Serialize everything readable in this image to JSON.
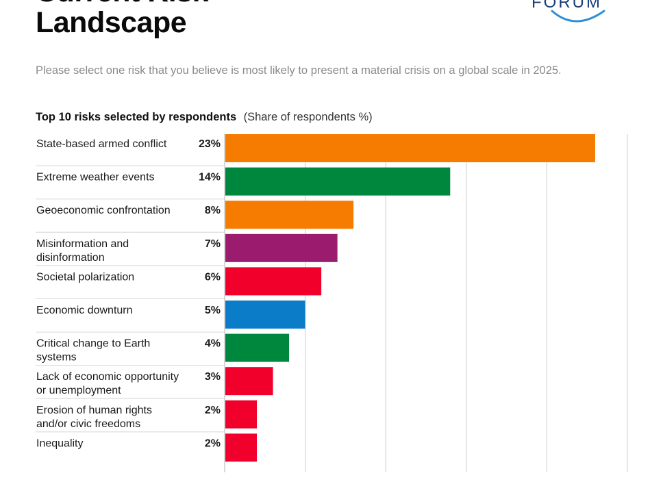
{
  "header": {
    "title_line1": "Current Risk",
    "title_line2": "Landscape",
    "logo_text": "FORUM",
    "subtitle": "Please select one risk that you believe is most likely to present a material crisis on a global scale in 2025."
  },
  "chart_data": {
    "type": "bar",
    "orientation": "horizontal",
    "title": "Top 10 risks selected by respondents",
    "unit_label": "(Share of respondents %)",
    "categories": [
      [
        "State-based armed conflict"
      ],
      [
        "Extreme weather events"
      ],
      [
        "Geoeconomic confrontation"
      ],
      [
        "Misinformation and",
        "disinformation"
      ],
      [
        "Societal polarization"
      ],
      [
        "Economic downturn"
      ],
      [
        "Critical change to Earth",
        "systems"
      ],
      [
        "Lack of economic opportunity",
        "or unemployment"
      ],
      [
        "Erosion of human rights",
        "and/or civic freedoms"
      ],
      [
        "Inequality"
      ]
    ],
    "values": [
      23,
      14,
      8,
      7,
      6,
      5,
      4,
      3,
      2,
      2
    ],
    "value_labels": [
      "23%",
      "14%",
      "8%",
      "7%",
      "6%",
      "5%",
      "4%",
      "3%",
      "2%",
      "2%"
    ],
    "colors": [
      "#f57c00",
      "#00873e",
      "#f57c00",
      "#9b1b6e",
      "#f0002a",
      "#0a7cc8",
      "#00873e",
      "#f0002a",
      "#f0002a",
      "#f0002a"
    ],
    "xlim": [
      0,
      25
    ],
    "gridlines": [
      5,
      10,
      15,
      20,
      25
    ]
  }
}
